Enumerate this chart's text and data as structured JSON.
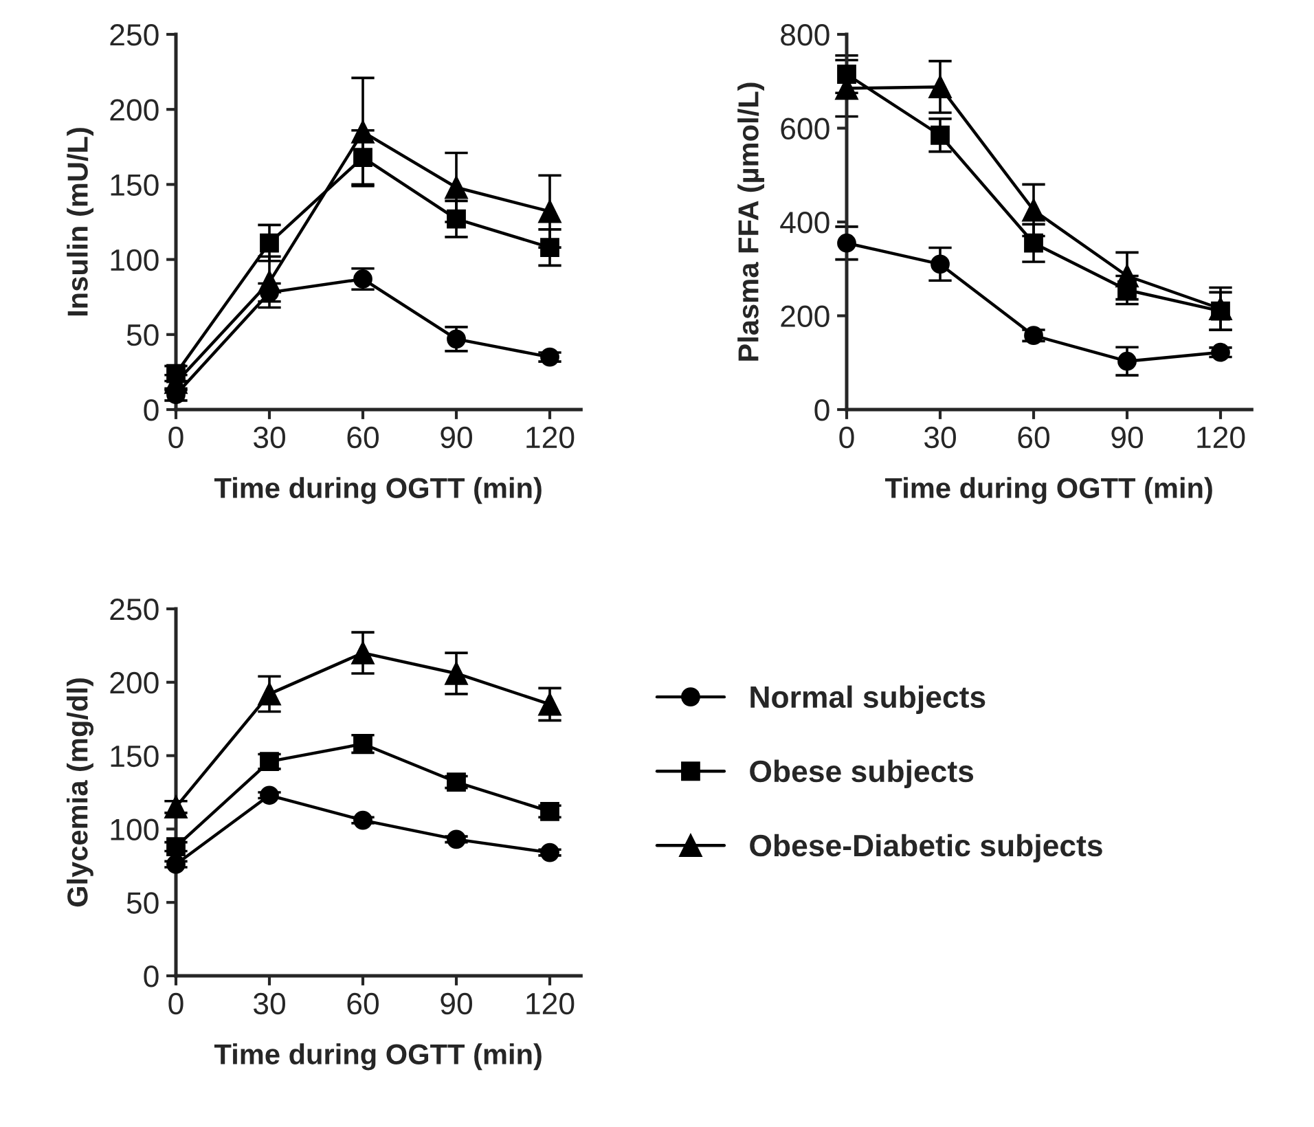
{
  "chart_data": [
    {
      "type": "line",
      "xlabel": "Time during OGTT (min)",
      "ylabel": "Insulin (mU/L)",
      "x": [
        0,
        30,
        60,
        90,
        120
      ],
      "xlim": [
        0,
        130
      ],
      "xticks": [
        0,
        30,
        60,
        90,
        120
      ],
      "ylim": [
        0,
        250
      ],
      "yticks": [
        0,
        50,
        100,
        150,
        200,
        250
      ],
      "line_style": "solid",
      "grid": false,
      "legend": false,
      "series": [
        {
          "color": "#000000",
          "marker": "circle",
          "values": [
            10,
            78,
            87,
            47,
            35
          ],
          "errors": [
            4,
            6,
            7,
            8,
            3
          ]
        },
        {
          "color": "#000000",
          "marker": "square",
          "values": [
            24,
            111,
            168,
            127,
            108
          ],
          "errors": [
            5,
            12,
            18,
            12,
            12
          ]
        },
        {
          "color": "#000000",
          "marker": "triangle",
          "values": [
            18,
            85,
            185,
            148,
            132
          ],
          "errors": [
            5,
            17,
            36,
            23,
            24
          ]
        }
      ]
    },
    {
      "type": "line",
      "xlabel": "Time during OGTT (min)",
      "ylabel": "Plasma FFA (µmol/L)",
      "x": [
        0,
        30,
        60,
        90,
        120
      ],
      "xlim": [
        0,
        130
      ],
      "xticks": [
        0,
        30,
        60,
        90,
        120
      ],
      "ylim": [
        0,
        800
      ],
      "yticks": [
        0,
        200,
        400,
        600,
        800
      ],
      "line_style": "solid",
      "grid": false,
      "legend": false,
      "series": [
        {
          "color": "#000000",
          "marker": "circle",
          "values": [
            355,
            310,
            158,
            103,
            122
          ],
          "errors": [
            35,
            35,
            12,
            30,
            10
          ]
        },
        {
          "color": "#000000",
          "marker": "square",
          "values": [
            715,
            585,
            355,
            255,
            210
          ],
          "errors": [
            40,
            35,
            40,
            30,
            40
          ]
        },
        {
          "color": "#000000",
          "marker": "triangle",
          "values": [
            685,
            688,
            425,
            285,
            215
          ],
          "errors": [
            60,
            55,
            55,
            50,
            45
          ]
        }
      ]
    },
    {
      "type": "line",
      "xlabel": "Time during OGTT (min)",
      "ylabel": "Glycemia (mg/dl)",
      "x": [
        0,
        30,
        60,
        90,
        120
      ],
      "xlim": [
        0,
        130
      ],
      "xticks": [
        0,
        30,
        60,
        90,
        120
      ],
      "ylim": [
        0,
        250
      ],
      "yticks": [
        0,
        50,
        100,
        150,
        200,
        250
      ],
      "line_style": "solid",
      "grid": false,
      "legend": "right",
      "series": [
        {
          "name": "Normal subjects",
          "color": "#000000",
          "marker": "circle",
          "values": [
            76,
            123,
            106,
            93,
            84
          ],
          "errors": [
            2,
            2,
            2,
            2,
            2
          ]
        },
        {
          "name": "Obese subjects",
          "color": "#000000",
          "marker": "square",
          "values": [
            88,
            146,
            158,
            132,
            112
          ],
          "errors": [
            3,
            5,
            6,
            4,
            4
          ]
        },
        {
          "name": "Obese-Diabetic subjects",
          "color": "#000000",
          "marker": "triangle",
          "values": [
            115,
            192,
            220,
            206,
            185
          ],
          "errors": [
            4,
            12,
            14,
            14,
            11
          ]
        }
      ]
    }
  ]
}
